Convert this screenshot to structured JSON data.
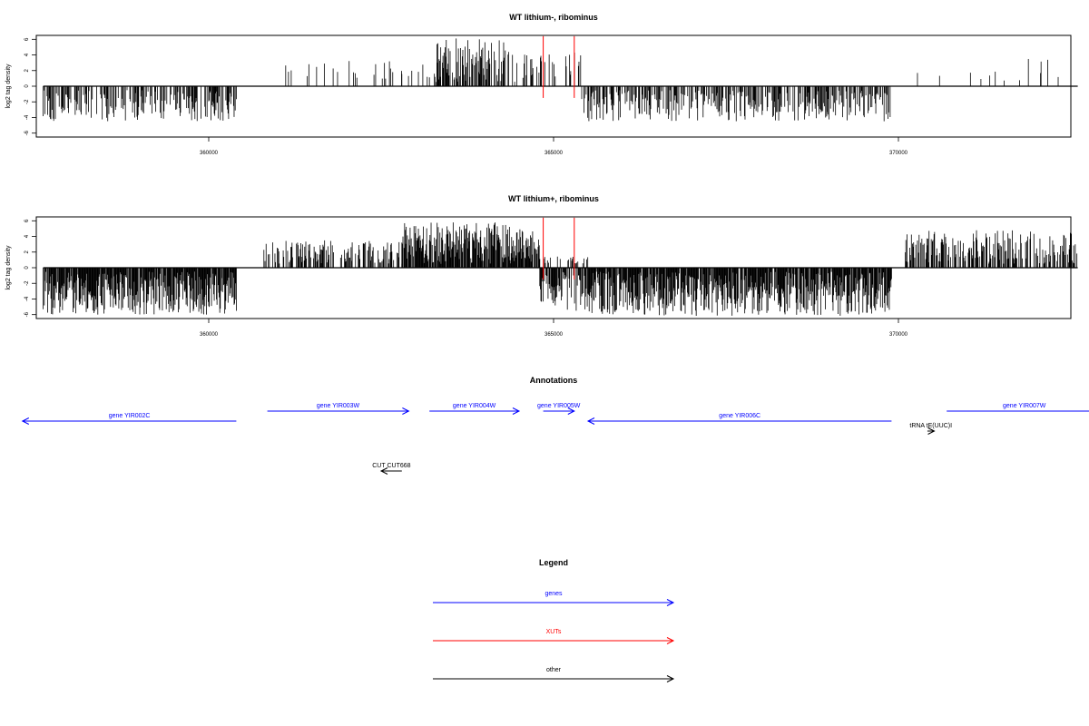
{
  "chart_data": [
    {
      "type": "bar",
      "title": "WT lithium-, ribominus",
      "ylabel": "log2 tag density",
      "xlabel": "",
      "ylim": [
        -6.5,
        6.5
      ],
      "yticks": [
        6,
        4,
        2,
        0,
        -2,
        -4,
        -6
      ],
      "xlim": [
        357500,
        372500
      ],
      "xticks": [
        360000,
        365000,
        370000
      ],
      "xtick_labels": [
        "360000",
        "365000",
        "370000"
      ],
      "baseline": [
        357600,
        372600
      ],
      "density": [
        {
          "start": 357600,
          "end": 360400,
          "min": -4.5,
          "max": -0.5,
          "sign": -1,
          "fill": 0.45
        },
        {
          "start": 361100,
          "end": 362800,
          "min": 0.5,
          "max": 3.5,
          "sign": 1,
          "fill": 0.1
        },
        {
          "start": 362800,
          "end": 363300,
          "min": 0.5,
          "max": 3.0,
          "sign": 1,
          "fill": 0.2
        },
        {
          "start": 363300,
          "end": 364300,
          "min": 0.5,
          "max": 6.2,
          "sign": 1,
          "fill": 0.6
        },
        {
          "start": 364300,
          "end": 364800,
          "min": 0.5,
          "max": 4.5,
          "sign": 1,
          "fill": 0.2
        },
        {
          "start": 364800,
          "end": 365400,
          "min": 0.5,
          "max": 4.5,
          "sign": 1,
          "fill": 0.3
        },
        {
          "start": 365400,
          "end": 369900,
          "min": -4.5,
          "max": -0.5,
          "sign": -1,
          "fill": 0.55
        },
        {
          "start": 370100,
          "end": 372600,
          "min": 0.5,
          "max": 3.5,
          "sign": 1,
          "fill": 0.05
        }
      ],
      "red_lines": [
        364850,
        365300
      ]
    },
    {
      "type": "bar",
      "title": "WT lithium+, ribominus",
      "ylabel": "log2 tag density",
      "xlabel": "",
      "ylim": [
        -6.5,
        6.5
      ],
      "yticks": [
        6,
        4,
        2,
        0,
        -2,
        -4,
        -6
      ],
      "xlim": [
        357500,
        372500
      ],
      "xticks": [
        360000,
        365000,
        370000
      ],
      "xtick_labels": [
        "360000",
        "365000",
        "370000"
      ],
      "baseline": [
        357600,
        372600
      ],
      "density": [
        {
          "start": 357600,
          "end": 360400,
          "min": -6.0,
          "max": -0.5,
          "sign": -1,
          "fill": 0.9
        },
        {
          "start": 360800,
          "end": 362800,
          "min": 0.5,
          "max": 3.5,
          "sign": 1,
          "fill": 0.5
        },
        {
          "start": 362800,
          "end": 364800,
          "min": 0.5,
          "max": 5.8,
          "sign": 1,
          "fill": 0.9
        },
        {
          "start": 364800,
          "end": 365500,
          "min": -5.5,
          "max": 1.5,
          "sign": 0,
          "fill": 0.9
        },
        {
          "start": 365500,
          "end": 369900,
          "min": -6.2,
          "max": -0.5,
          "sign": -1,
          "fill": 0.9
        },
        {
          "start": 370100,
          "end": 372600,
          "min": 0.5,
          "max": 4.8,
          "sign": 1,
          "fill": 0.6
        }
      ],
      "red_lines": [
        364850,
        365300
      ]
    }
  ],
  "annotations": {
    "title": "Annotations",
    "items": [
      {
        "label": "gene YIR002C",
        "start": 357300,
        "end": 360400,
        "dir": -1,
        "row": 1,
        "color": "#0000ff"
      },
      {
        "label": "gene YIR003W",
        "start": 360850,
        "end": 362900,
        "dir": 1,
        "row": 0,
        "color": "#0000ff"
      },
      {
        "label": "gene YIR004W",
        "start": 363200,
        "end": 364500,
        "dir": 1,
        "row": 0,
        "color": "#0000ff"
      },
      {
        "label": "gene YIR005W",
        "start": 364850,
        "end": 365300,
        "dir": 1,
        "row": 0,
        "color": "#0000ff"
      },
      {
        "label": "gene YIR006C",
        "start": 365500,
        "end": 369900,
        "dir": -1,
        "row": 1,
        "color": "#0000ff"
      },
      {
        "label": "gene YIR007W",
        "start": 370700,
        "end": 372950,
        "dir": 1,
        "row": 0,
        "color": "#0000ff"
      },
      {
        "label": "tRNA tE(UUC)I",
        "start": 370420,
        "end": 370520,
        "dir": 1,
        "row": 2,
        "color": "#000000"
      },
      {
        "label": "CUT CUT668",
        "start": 362500,
        "end": 362800,
        "dir": -1,
        "row": 6,
        "color": "#000000"
      }
    ]
  },
  "legend": {
    "title": "Legend",
    "items": [
      {
        "label": "genes",
        "color": "#0000ff"
      },
      {
        "label": "XUTs",
        "color": "#ff0000"
      },
      {
        "label": "other",
        "color": "#000000"
      }
    ]
  }
}
